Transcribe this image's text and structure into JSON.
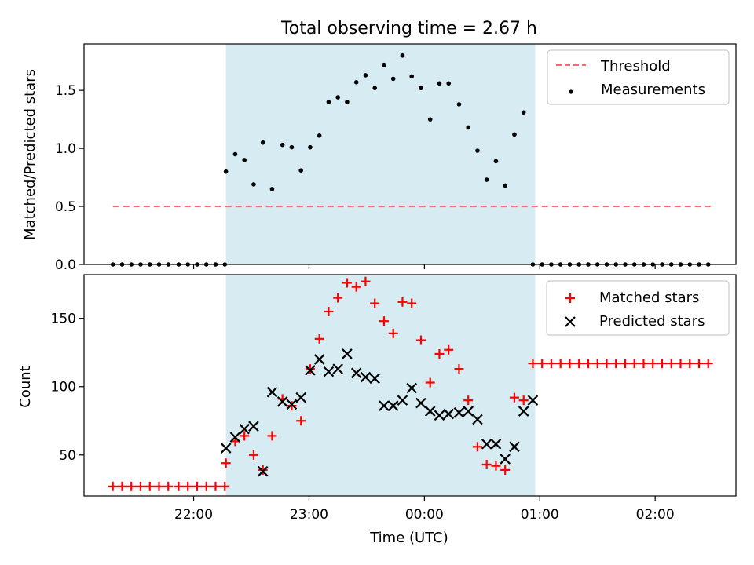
{
  "title": "Total observing time = 2.67 h",
  "colors": {
    "shade": "#add8e6",
    "threshold": "#ff6b6b",
    "matched": "#ff0000",
    "predicted": "#000000",
    "measure": "#000000"
  },
  "chart_data": [
    {
      "type": "scatter",
      "ylabel": "Matched/Predicted stars",
      "ylim": [
        0,
        1.9
      ],
      "yticks": [
        0.0,
        0.5,
        1.0,
        1.5
      ],
      "ytick_labels": [
        "0.0",
        "0.5",
        "1.0",
        "1.5"
      ],
      "x_unit": "hours relative to 00:00 UTC",
      "xlim": [
        -2.95,
        2.7
      ],
      "shaded_interval": [
        -1.72,
        0.96
      ],
      "legend": [
        "Threshold",
        "Measurements"
      ],
      "legend_position": "top-right",
      "threshold": {
        "name": "Threshold",
        "value": 0.5,
        "x": [
          -2.7,
          2.48
        ]
      },
      "series": [
        {
          "name": "Measurements",
          "x": [
            -2.7,
            -2.62,
            -2.54,
            -2.46,
            -2.38,
            -2.3,
            -2.22,
            -2.13,
            -2.05,
            -1.97,
            -1.89,
            -1.81,
            -1.73,
            -1.72,
            -1.64,
            -1.56,
            -1.48,
            -1.4,
            -1.32,
            -1.23,
            -1.15,
            -1.07,
            -0.99,
            -0.91,
            -0.83,
            -0.75,
            -0.67,
            -0.59,
            -0.51,
            -0.43,
            -0.35,
            -0.27,
            -0.19,
            -0.11,
            -0.03,
            0.05,
            0.13,
            0.21,
            0.3,
            0.38,
            0.46,
            0.54,
            0.62,
            0.7,
            0.78,
            0.86,
            0.94,
            1.02,
            1.1,
            1.18,
            1.26,
            1.34,
            1.42,
            1.5,
            1.58,
            1.66,
            1.74,
            1.82,
            1.9,
            1.98,
            2.06,
            2.14,
            2.22,
            2.3,
            2.38,
            2.46
          ],
          "y": [
            0,
            0,
            0,
            0,
            0,
            0,
            0,
            0,
            0,
            0,
            0,
            0,
            0,
            0.8,
            0.95,
            0.9,
            0.69,
            1.05,
            0.65,
            1.03,
            1.01,
            0.81,
            1.01,
            1.11,
            1.4,
            1.44,
            1.4,
            1.57,
            1.63,
            1.52,
            1.72,
            1.6,
            1.8,
            1.62,
            1.52,
            1.25,
            1.56,
            1.56,
            1.38,
            1.18,
            0.98,
            0.73,
            0.89,
            0.68,
            1.12,
            1.31,
            0,
            0,
            0,
            0,
            0,
            0,
            0,
            0,
            0,
            0,
            0,
            0,
            0,
            0,
            0,
            0,
            0,
            0,
            0,
            0
          ]
        }
      ]
    },
    {
      "type": "scatter",
      "xlabel": "Time (UTC)",
      "ylabel": "Count",
      "ylim": [
        20,
        182
      ],
      "yticks": [
        50,
        100,
        150
      ],
      "ytick_labels": [
        "50",
        "100",
        "150"
      ],
      "xticks": [
        -2,
        -1,
        0,
        1,
        2
      ],
      "xtick_labels": [
        "22:00",
        "23:00",
        "00:00",
        "01:00",
        "02:00"
      ],
      "x_unit": "hours relative to 00:00 UTC",
      "xlim": [
        -2.95,
        2.7
      ],
      "shaded_interval": [
        -1.72,
        0.96
      ],
      "legend": [
        "Matched stars",
        "Predicted stars"
      ],
      "legend_position": "top-right",
      "series": [
        {
          "name": "Matched stars",
          "marker": "+",
          "x": [
            -2.7,
            -2.62,
            -2.54,
            -2.46,
            -2.38,
            -2.3,
            -2.22,
            -2.13,
            -2.05,
            -1.97,
            -1.89,
            -1.81,
            -1.73,
            -1.72,
            -1.64,
            -1.56,
            -1.48,
            -1.4,
            -1.32,
            -1.23,
            -1.15,
            -1.07,
            -0.99,
            -0.91,
            -0.83,
            -0.75,
            -0.67,
            -0.59,
            -0.51,
            -0.43,
            -0.35,
            -0.27,
            -0.19,
            -0.11,
            -0.03,
            0.05,
            0.13,
            0.21,
            0.3,
            0.38,
            0.46,
            0.54,
            0.62,
            0.7,
            0.78,
            0.86,
            0.94,
            1.02,
            1.1,
            1.18,
            1.26,
            1.34,
            1.42,
            1.5,
            1.58,
            1.66,
            1.74,
            1.82,
            1.9,
            1.98,
            2.06,
            2.14,
            2.22,
            2.3,
            2.38,
            2.46
          ],
          "y": [
            27,
            27,
            27,
            27,
            27,
            27,
            27,
            27,
            27,
            27,
            27,
            27,
            27,
            44,
            60,
            64,
            50,
            39,
            64,
            91,
            86,
            75,
            113,
            135,
            155,
            165,
            176,
            173,
            177,
            161,
            148,
            139,
            162,
            161,
            134,
            103,
            124,
            127,
            113,
            90,
            56,
            43,
            42,
            39,
            92,
            90,
            117,
            117,
            117,
            117,
            117,
            117,
            117,
            117,
            117,
            117,
            117,
            117,
            117,
            117,
            117,
            117,
            117,
            117,
            117,
            117
          ]
        },
        {
          "name": "Predicted stars",
          "marker": "x",
          "x": [
            -1.72,
            -1.64,
            -1.56,
            -1.48,
            -1.4,
            -1.32,
            -1.23,
            -1.15,
            -1.07,
            -0.99,
            -0.91,
            -0.83,
            -0.75,
            -0.67,
            -0.59,
            -0.51,
            -0.43,
            -0.35,
            -0.27,
            -0.19,
            -0.11,
            -0.03,
            0.05,
            0.13,
            0.21,
            0.3,
            0.38,
            0.46,
            0.54,
            0.62,
            0.7,
            0.78,
            0.86,
            0.94
          ],
          "y": [
            55,
            63,
            69,
            71,
            38,
            96,
            89,
            87,
            92,
            112,
            120,
            111,
            113,
            124,
            110,
            107,
            106,
            86,
            86,
            90,
            99,
            88,
            82,
            79,
            80,
            81,
            82,
            76,
            58,
            58,
            47,
            56,
            82,
            90
          ]
        }
      ]
    }
  ]
}
